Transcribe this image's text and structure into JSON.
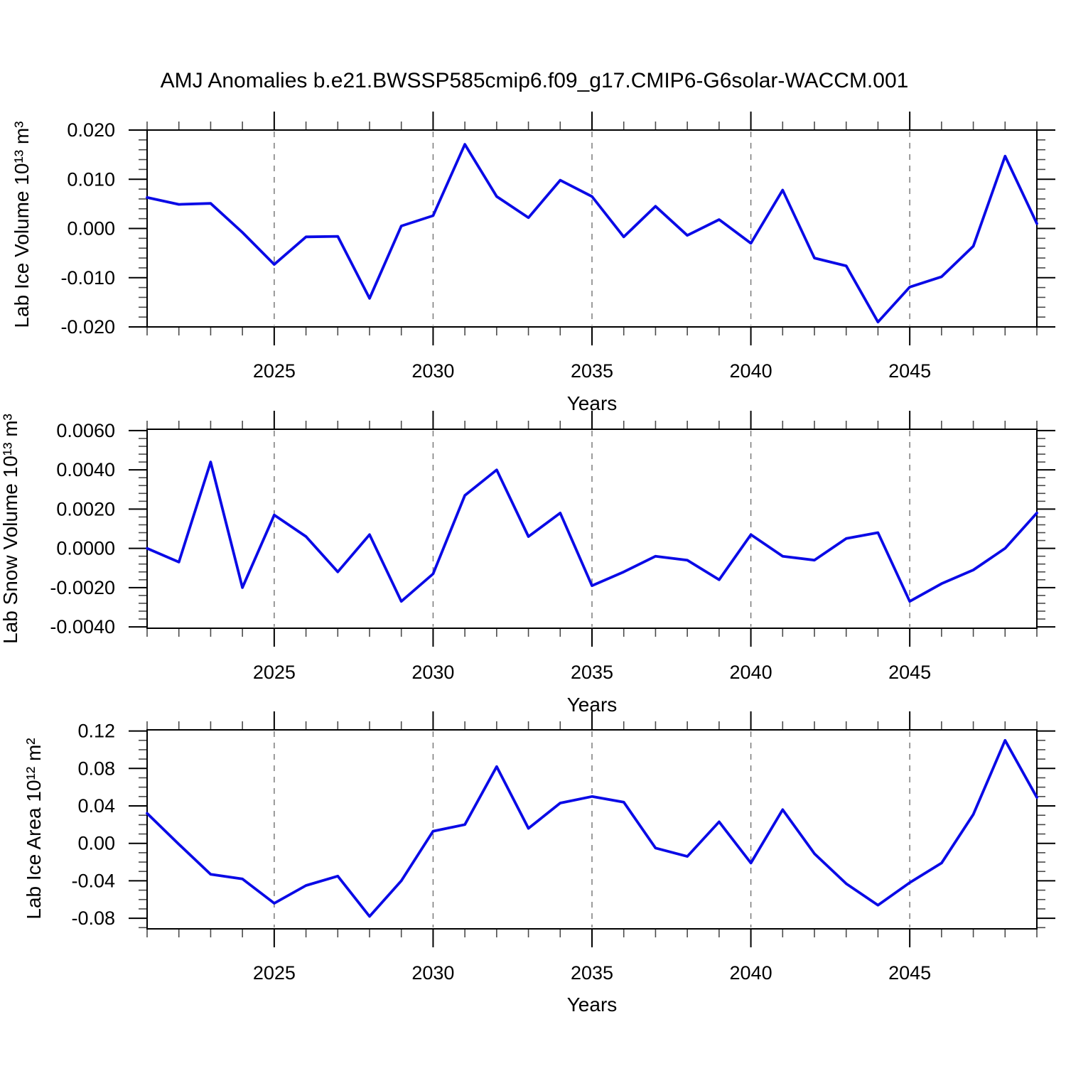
{
  "figure": {
    "title": "AMJ Anomalies b.e21.BWSSP585cmip6.f09_g17.CMIP6-G6solar-WACCM.001",
    "background": "#ffffff",
    "colors": {
      "line": "#0a0ae6",
      "grid": "#7a7a7a",
      "axis": "#000000",
      "minor_tick": "#4b4b4b",
      "text": "#000000"
    }
  },
  "chart_data": [
    {
      "type": "line",
      "ylabel": "Lab Ice Volume 10¹³ m³",
      "xlabel": "Years",
      "x": [
        2021,
        2022,
        2023,
        2024,
        2025,
        2026,
        2027,
        2028,
        2029,
        2030,
        2031,
        2032,
        2033,
        2034,
        2035,
        2036,
        2037,
        2038,
        2039,
        2040,
        2041,
        2042,
        2043,
        2044,
        2045,
        2046,
        2047,
        2048,
        2049
      ],
      "values": [
        0.0063,
        0.0049,
        0.0051,
        -0.0008,
        -0.0073,
        -0.0017,
        -0.0016,
        -0.0142,
        0.0005,
        0.0026,
        0.0171,
        0.0065,
        0.0022,
        0.0098,
        0.0065,
        -0.0017,
        0.0045,
        -0.0014,
        0.0018,
        -0.003,
        0.0078,
        -0.006,
        -0.0076,
        -0.019,
        -0.0119,
        -0.0098,
        -0.0036,
        0.0147,
        0.001
      ],
      "xlim": [
        2021,
        2049
      ],
      "ylim": [
        -0.02,
        0.02
      ],
      "xticks": {
        "major": [
          2025,
          2030,
          2035,
          2040,
          2045
        ],
        "labels": [
          "2025",
          "2030",
          "2035",
          "2040",
          "2045"
        ],
        "minor_step": 1
      },
      "yticks": {
        "major": [
          0.02,
          0.01,
          0.0,
          -0.01,
          -0.02
        ],
        "labels": [
          "0.020",
          "0.010",
          "0.000",
          "-0.010",
          "-0.020"
        ],
        "minor_step": 0.002
      },
      "grid": {
        "vertical_dashed_at_major_x": true
      },
      "legend": null
    },
    {
      "type": "line",
      "ylabel": "Lab Snow Volume 10¹³ m³",
      "xlabel": "Years",
      "x": [
        2021,
        2022,
        2023,
        2024,
        2025,
        2026,
        2027,
        2028,
        2029,
        2030,
        2031,
        2032,
        2033,
        2034,
        2035,
        2036,
        2037,
        2038,
        2039,
        2040,
        2041,
        2042,
        2043,
        2044,
        2045,
        2046,
        2047,
        2048,
        2049
      ],
      "values": [
        0.0,
        -0.0007,
        0.0044,
        -0.002,
        0.0017,
        0.0006,
        -0.0012,
        0.0007,
        -0.0027,
        -0.0013,
        0.0027,
        0.004,
        0.0006,
        0.0018,
        -0.0019,
        -0.0012,
        -0.0004,
        -0.0006,
        -0.0016,
        0.0007,
        -0.0004,
        -0.0006,
        0.0005,
        0.0008,
        -0.0027,
        -0.0018,
        -0.0011,
        0.0,
        0.0018
      ],
      "xlim": [
        2021,
        2049
      ],
      "ylim": [
        -0.00407,
        0.00607
      ],
      "xticks": {
        "major": [
          2025,
          2030,
          2035,
          2040,
          2045
        ],
        "labels": [
          "2025",
          "2030",
          "2035",
          "2040",
          "2045"
        ],
        "minor_step": 1
      },
      "yticks": {
        "major": [
          0.006,
          0.004,
          0.002,
          0.0,
          -0.002,
          -0.004
        ],
        "labels": [
          "0.0060",
          "0.0040",
          "0.0020",
          "0.0000",
          "-0.0020",
          "-0.0040"
        ],
        "minor_step": 0.0004
      },
      "grid": {
        "vertical_dashed_at_major_x": true
      },
      "legend": null
    },
    {
      "type": "line",
      "ylabel": "Lab Ice Area 10¹² m²",
      "xlabel": "Years",
      "x": [
        2021,
        2022,
        2023,
        2024,
        2025,
        2026,
        2027,
        2028,
        2029,
        2030,
        2031,
        2032,
        2033,
        2034,
        2035,
        2036,
        2037,
        2038,
        2039,
        2040,
        2041,
        2042,
        2043,
        2044,
        2045,
        2046,
        2047,
        2048,
        2049
      ],
      "values": [
        0.032,
        -0.001,
        -0.033,
        -0.038,
        -0.064,
        -0.045,
        -0.035,
        -0.078,
        -0.04,
        0.013,
        0.02,
        0.082,
        0.016,
        0.043,
        0.05,
        0.044,
        -0.005,
        -0.014,
        0.023,
        -0.021,
        0.036,
        -0.011,
        -0.043,
        -0.066,
        -0.042,
        -0.021,
        0.031,
        0.11,
        0.049
      ],
      "xlim": [
        2021,
        2049
      ],
      "ylim": [
        -0.0913,
        0.1212
      ],
      "xticks": {
        "major": [
          2025,
          2030,
          2035,
          2040,
          2045
        ],
        "labels": [
          "2025",
          "2030",
          "2035",
          "2040",
          "2045"
        ],
        "minor_step": 1
      },
      "yticks": {
        "major": [
          0.12,
          0.08,
          0.04,
          0.0,
          -0.04,
          -0.08
        ],
        "labels": [
          "0.12",
          "0.08",
          "0.04",
          "0.00",
          "-0.04",
          "-0.08"
        ],
        "minor_step": 0.01
      },
      "grid": {
        "vertical_dashed_at_major_x": true
      },
      "legend": null
    }
  ]
}
